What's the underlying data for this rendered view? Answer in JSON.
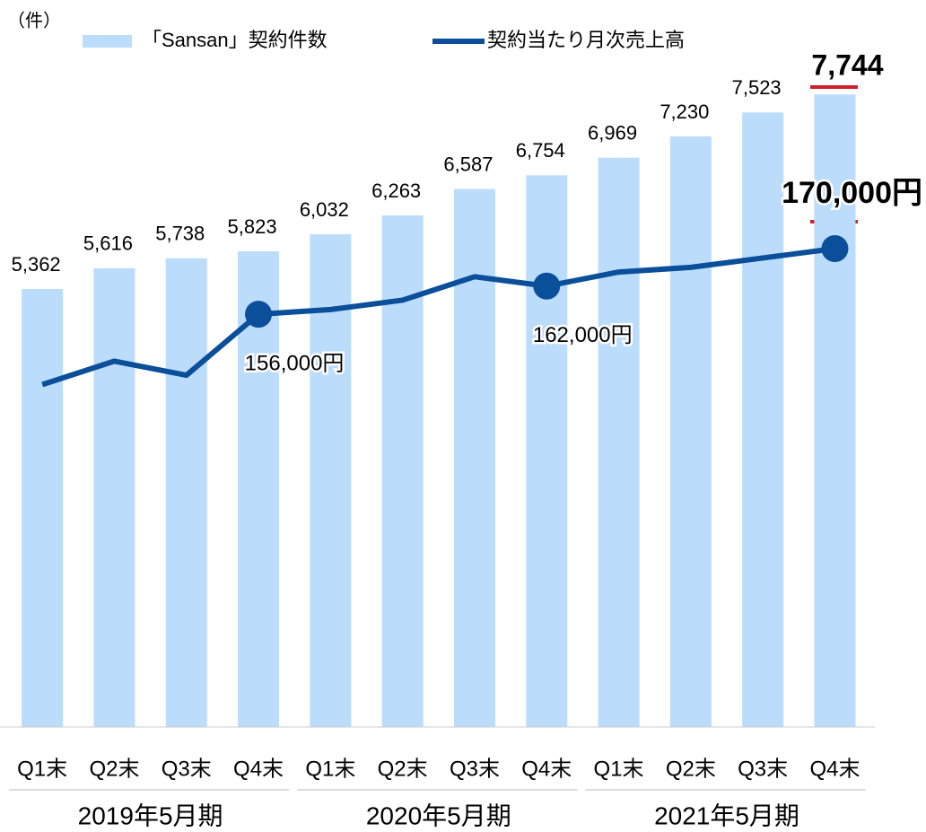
{
  "chart_data": {
    "type": "bar",
    "unit_label": "（件）",
    "categories": [
      "Q1末",
      "Q2末",
      "Q3末",
      "Q4末",
      "Q1末",
      "Q2末",
      "Q3末",
      "Q4末",
      "Q1末",
      "Q2末",
      "Q3末",
      "Q4末"
    ],
    "groups": [
      "2019年5月期",
      "2020年5月期",
      "2021年5月期"
    ],
    "ylim": [
      0,
      8900
    ],
    "y2lim": [
      68000,
      223000
    ],
    "series": [
      {
        "name": "「Sansan」契約件数",
        "type": "bar",
        "color": "#bbdcfb",
        "values": [
          5362,
          5616,
          5738,
          5823,
          6032,
          6263,
          6587,
          6754,
          6969,
          7230,
          7523,
          7744
        ],
        "value_labels": [
          "5,362",
          "5,616",
          "5,738",
          "5,823",
          "6,032",
          "6,263",
          "6,587",
          "6,754",
          "6,969",
          "7,230",
          "7,523",
          "7,744"
        ]
      },
      {
        "name": "契約当たり月次売上高",
        "type": "line",
        "axis": "y2",
        "color": "#0b4f9a",
        "values": [
          141000,
          146000,
          143000,
          156000,
          157000,
          159000,
          164000,
          162000,
          165000,
          166000,
          168000,
          170000
        ],
        "value_labels": [
          null,
          null,
          null,
          "156,000円",
          null,
          null,
          null,
          "162,000円",
          null,
          null,
          null,
          "170,000円"
        ]
      }
    ]
  }
}
